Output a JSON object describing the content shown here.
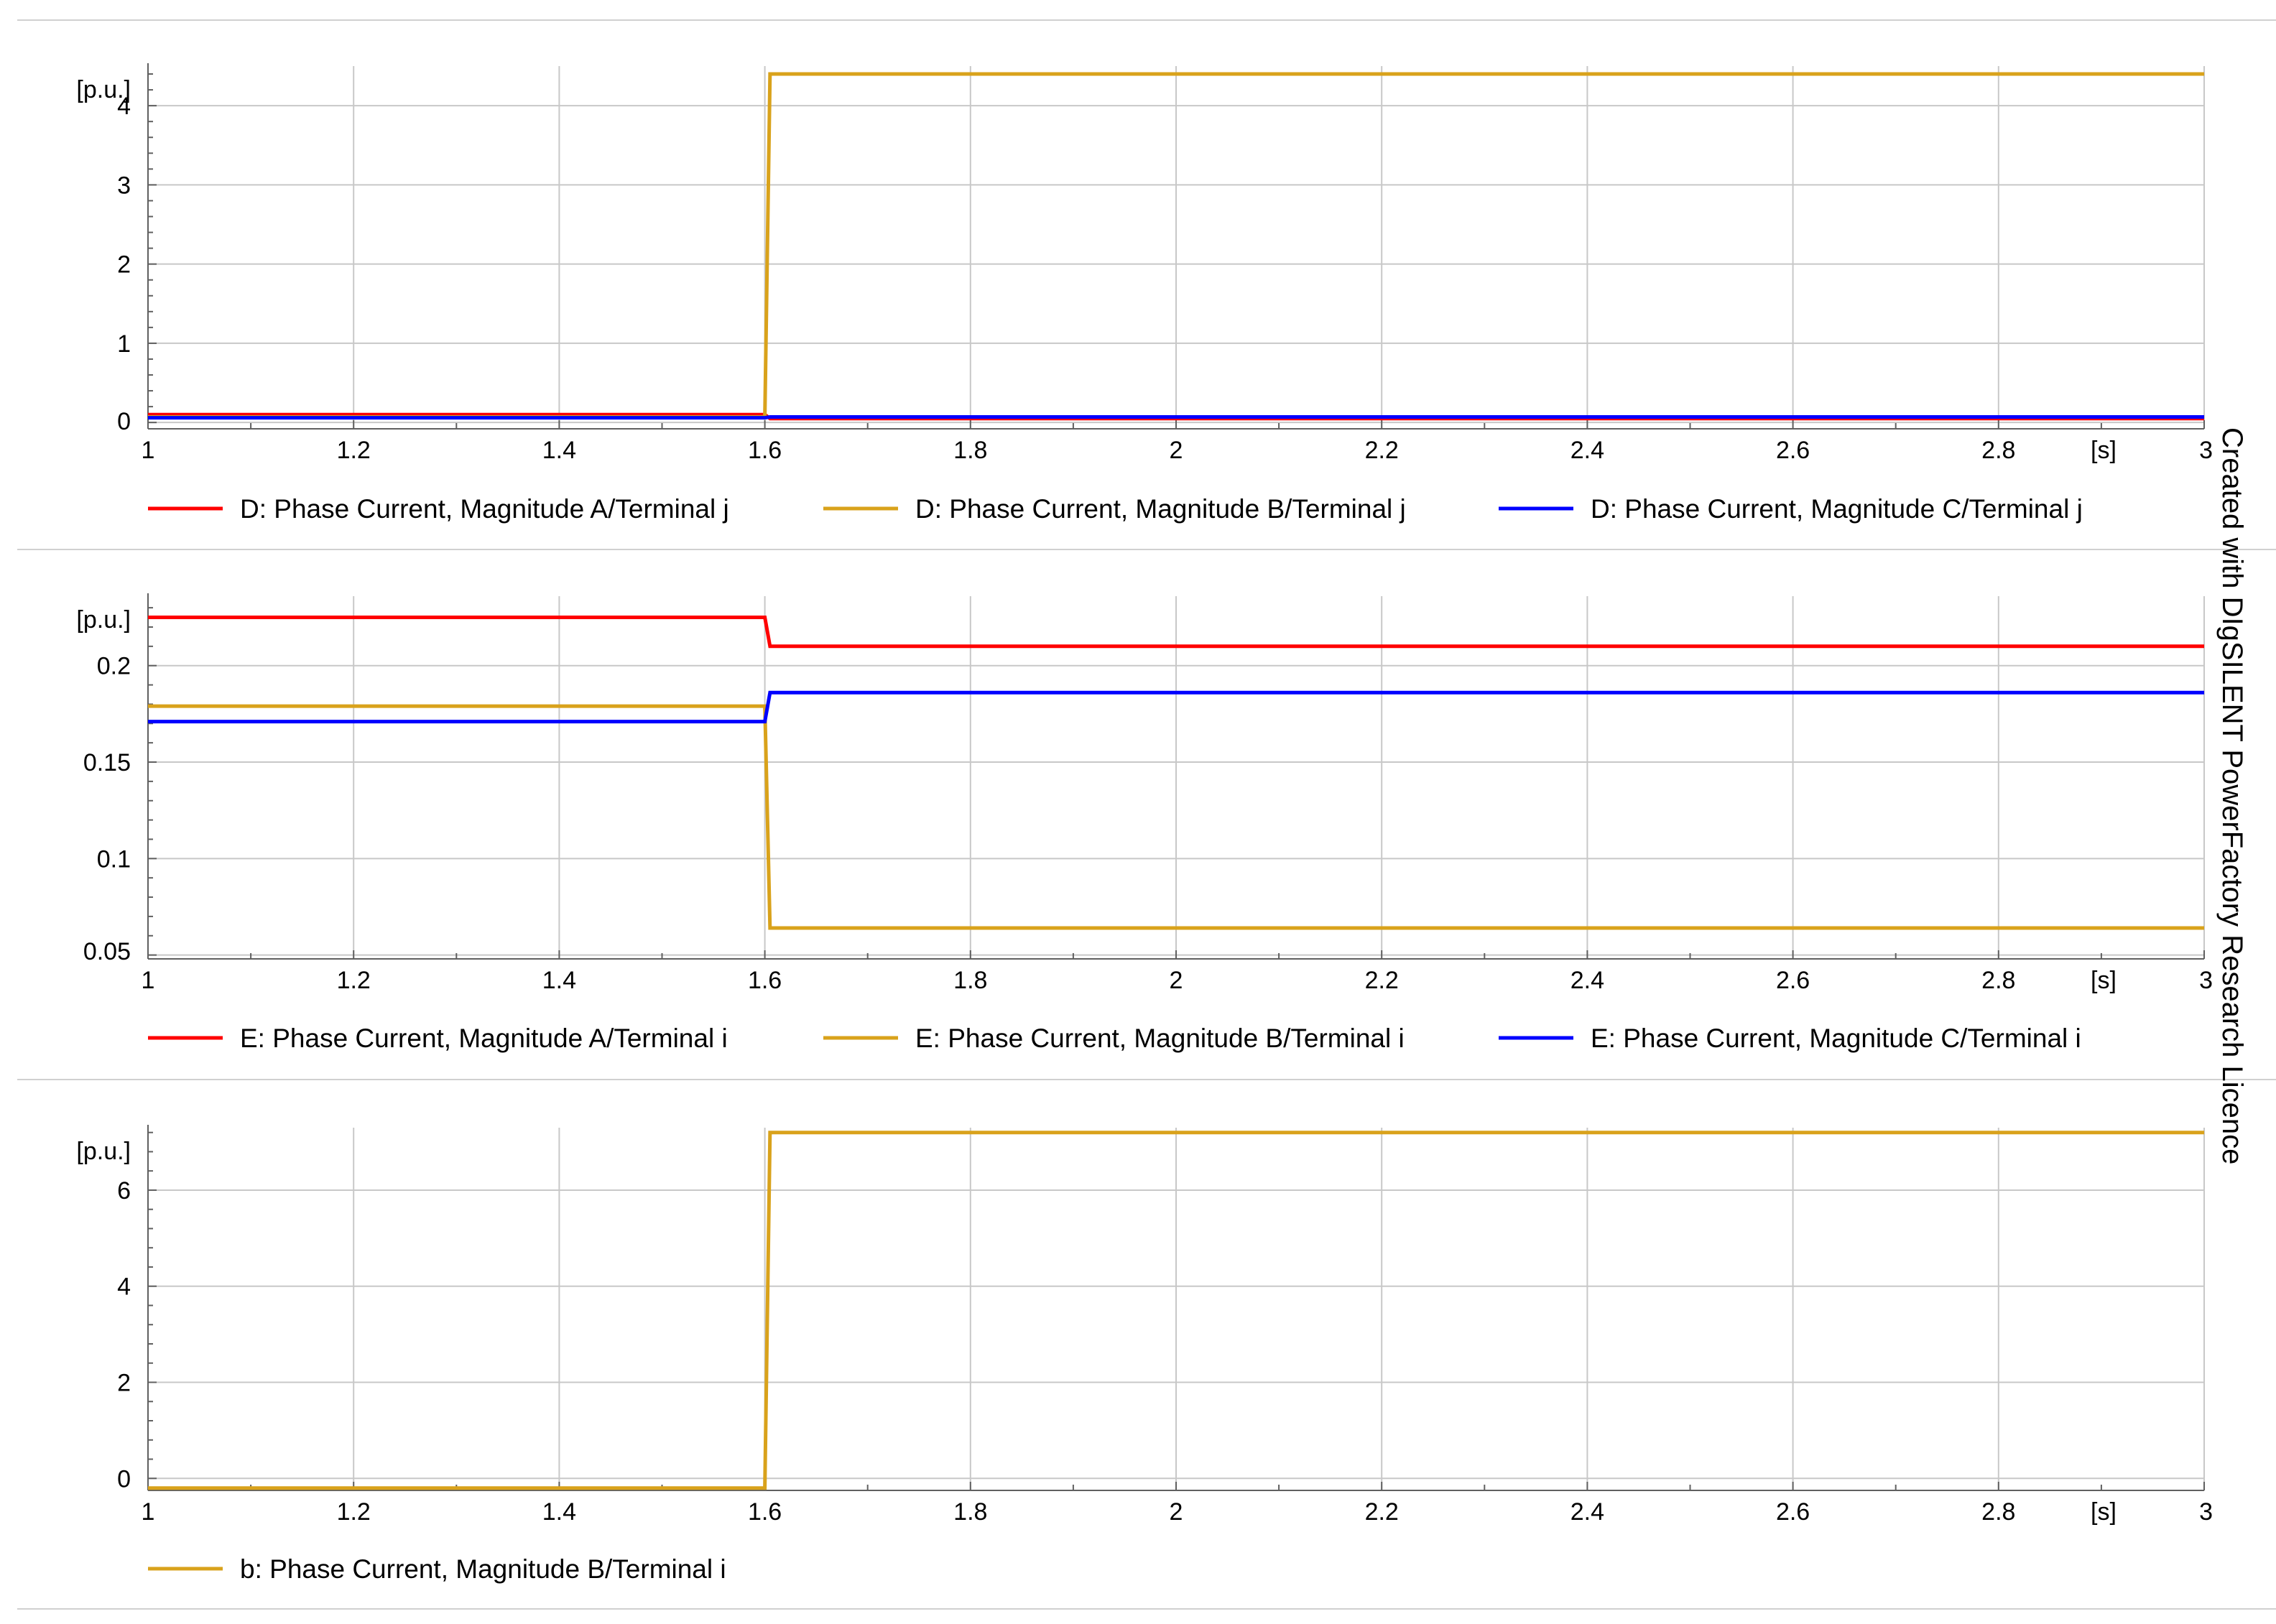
{
  "watermark": "Created with DIgSILENT PowerFactory Research Licence",
  "colors": {
    "phase_a": "#ff0000",
    "phase_b": "#d9a21b",
    "phase_c": "#0000ff",
    "grid": "#c8c8c8",
    "axis": "#606060",
    "separator": "#d0d0d0"
  },
  "chart_data": [
    {
      "type": "line",
      "y_unit_label": "[p.u.]",
      "x_unit_label": "[s]",
      "xlim": [
        1,
        3
      ],
      "ylim": [
        -0.08,
        4.5
      ],
      "x_ticks": [
        1,
        1.2,
        1.4,
        1.6,
        1.8,
        2,
        2.2,
        2.4,
        2.6,
        2.8,
        3
      ],
      "x_tick_labels": [
        "1",
        "1.2",
        "1.4",
        "1.6",
        "1.8",
        "2",
        "2.2",
        "2.4",
        "2.6",
        "2.8",
        "3"
      ],
      "y_ticks": [
        0,
        1,
        2,
        3,
        4
      ],
      "y_tick_labels": [
        "0",
        "1",
        "2",
        "3",
        "4"
      ],
      "grid": true,
      "legend_position": "bottom",
      "series": [
        {
          "name": "D: Phase Current, Magnitude A/Terminal j",
          "color_key": "phase_a",
          "x": [
            1,
            1.6,
            1.605,
            3
          ],
          "y": [
            0.1,
            0.1,
            0.05,
            0.05
          ]
        },
        {
          "name": "D: Phase Current, Magnitude B/Terminal j",
          "color_key": "phase_b",
          "x": [
            1,
            1.6,
            1.605,
            3
          ],
          "y": [
            0.07,
            0.07,
            4.4,
            4.4
          ]
        },
        {
          "name": "D: Phase Current, Magnitude C/Terminal j",
          "color_key": "phase_c",
          "x": [
            1,
            1.6,
            1.605,
            3
          ],
          "y": [
            0.06,
            0.06,
            0.07,
            0.07
          ]
        }
      ]
    },
    {
      "type": "line",
      "y_unit_label": "[p.u.]",
      "x_unit_label": "[s]",
      "xlim": [
        1,
        3
      ],
      "ylim": [
        0.048,
        0.236
      ],
      "x_ticks": [
        1,
        1.2,
        1.4,
        1.6,
        1.8,
        2,
        2.2,
        2.4,
        2.6,
        2.8,
        3
      ],
      "x_tick_labels": [
        "1",
        "1.2",
        "1.4",
        "1.6",
        "1.8",
        "2",
        "2.2",
        "2.4",
        "2.6",
        "2.8",
        "3"
      ],
      "y_ticks": [
        0.05,
        0.1,
        0.15,
        0.2
      ],
      "y_tick_labels": [
        "0.05",
        "0.1",
        "0.15",
        "0.2"
      ],
      "grid": true,
      "legend_position": "bottom",
      "series": [
        {
          "name": "E: Phase Current, Magnitude A/Terminal i",
          "color_key": "phase_a",
          "x": [
            1,
            1.6,
            1.605,
            3
          ],
          "y": [
            0.225,
            0.225,
            0.21,
            0.21
          ]
        },
        {
          "name": "E: Phase Current, Magnitude B/Terminal i",
          "color_key": "phase_b",
          "x": [
            1,
            1.6,
            1.605,
            3
          ],
          "y": [
            0.179,
            0.179,
            0.064,
            0.064
          ]
        },
        {
          "name": "E: Phase Current, Magnitude C/Terminal i",
          "color_key": "phase_c",
          "x": [
            1,
            1.6,
            1.605,
            3
          ],
          "y": [
            0.171,
            0.171,
            0.186,
            0.186
          ]
        }
      ]
    },
    {
      "type": "line",
      "y_unit_label": "[p.u.]",
      "x_unit_label": "[s]",
      "xlim": [
        1,
        3
      ],
      "ylim": [
        -0.25,
        7.3
      ],
      "x_ticks": [
        1,
        1.2,
        1.4,
        1.6,
        1.8,
        2,
        2.2,
        2.4,
        2.6,
        2.8,
        3
      ],
      "x_tick_labels": [
        "1",
        "1.2",
        "1.4",
        "1.6",
        "1.8",
        "2",
        "2.2",
        "2.4",
        "2.6",
        "2.8",
        "3"
      ],
      "y_ticks": [
        0,
        2,
        4,
        6
      ],
      "y_tick_labels": [
        "0",
        "2",
        "4",
        "6"
      ],
      "grid": true,
      "legend_position": "bottom",
      "series": [
        {
          "name": "b: Phase Current, Magnitude B/Terminal i",
          "color_key": "phase_b",
          "x": [
            1,
            1.6,
            1.605,
            3
          ],
          "y": [
            -0.2,
            -0.2,
            7.2,
            7.2
          ]
        }
      ]
    }
  ]
}
